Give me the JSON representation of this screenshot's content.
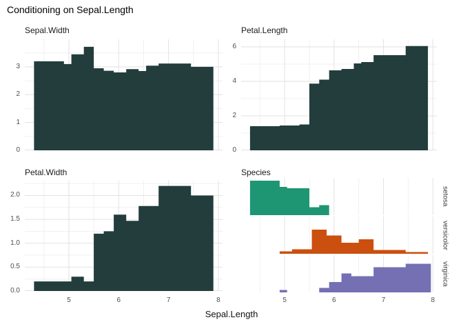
{
  "title": "Conditioning on Sepal.Length",
  "x_axis": {
    "label": "Sepal.Length",
    "tick_labels": [
      "5",
      "6",
      "7",
      "8"
    ],
    "tick_values": [
      5,
      6,
      7,
      8
    ],
    "minor_ticks": [
      4.5,
      5.5,
      6.5,
      7.5
    ],
    "range": [
      4.12,
      8.08
    ]
  },
  "colors": {
    "bar_dark": "#223d3c",
    "setosa": "#1f9673",
    "versicolor": "#cb4f0e",
    "virginica": "#7570b3",
    "grid_major": "#e2e2e2",
    "grid_minor": "#f0f0f0",
    "tick_text": "#4d4d4d",
    "strip_text": "#3f3f3f",
    "title_text": "#000000"
  },
  "chart_data": [
    {
      "type": "area",
      "name": "Sepal.Width",
      "ylim": [
        0,
        3.99
      ],
      "ytick_values": [
        0,
        1,
        2,
        3
      ],
      "ytick_labels": [
        "0",
        "1",
        "2",
        "3"
      ],
      "yminor": [
        0.5,
        1.5,
        2.5,
        3.5
      ],
      "color_key": "bar_dark",
      "segments": [
        [
          4.3,
          4.9,
          3.2
        ],
        [
          4.9,
          5.05,
          3.1
        ],
        [
          5.05,
          5.3,
          3.45
        ],
        [
          5.3,
          5.5,
          3.72
        ],
        [
          5.5,
          5.7,
          2.95
        ],
        [
          5.7,
          5.9,
          2.86
        ],
        [
          5.9,
          6.15,
          2.8
        ],
        [
          6.15,
          6.4,
          2.92
        ],
        [
          6.4,
          6.55,
          2.85
        ],
        [
          6.55,
          6.8,
          3.04
        ],
        [
          6.8,
          7.45,
          3.12
        ],
        [
          7.45,
          7.9,
          3.0
        ]
      ]
    },
    {
      "type": "area",
      "name": "Petal.Length",
      "ylim": [
        0,
        6.44
      ],
      "ytick_values": [
        0,
        2,
        4,
        6
      ],
      "ytick_labels": [
        "0",
        "2",
        "4",
        "6"
      ],
      "yminor": [
        1,
        3,
        5
      ],
      "color_key": "bar_dark",
      "segments": [
        [
          4.3,
          4.9,
          1.4
        ],
        [
          4.9,
          5.3,
          1.44
        ],
        [
          5.3,
          5.5,
          1.5
        ],
        [
          5.5,
          5.7,
          3.87
        ],
        [
          5.7,
          5.9,
          4.1
        ],
        [
          5.9,
          6.15,
          4.64
        ],
        [
          6.15,
          6.4,
          4.72
        ],
        [
          6.4,
          6.55,
          5.04
        ],
        [
          6.55,
          6.8,
          5.12
        ],
        [
          6.8,
          7.45,
          5.52
        ],
        [
          7.45,
          7.9,
          6.05
        ]
      ]
    },
    {
      "type": "area",
      "name": "Petal.Width",
      "ylim": [
        0,
        2.31
      ],
      "ytick_values": [
        0,
        0.5,
        1,
        1.5,
        2
      ],
      "ytick_labels": [
        "0.0",
        "0.5",
        "1.0",
        "1.5",
        "2.0"
      ],
      "yminor": [
        0.25,
        0.75,
        1.25,
        1.75,
        2.25
      ],
      "color_key": "bar_dark",
      "segments": [
        [
          4.3,
          5.05,
          0.2
        ],
        [
          5.05,
          5.3,
          0.3
        ],
        [
          5.3,
          5.5,
          0.2
        ],
        [
          5.5,
          5.7,
          1.2
        ],
        [
          5.7,
          5.9,
          1.25
        ],
        [
          5.9,
          6.15,
          1.6
        ],
        [
          6.15,
          6.4,
          1.47
        ],
        [
          6.4,
          6.8,
          1.78
        ],
        [
          6.8,
          7.45,
          2.2
        ],
        [
          7.45,
          7.9,
          2.0
        ]
      ]
    },
    {
      "type": "histogram-facets",
      "name": "Species",
      "ylim": [
        0,
        1.08
      ],
      "facets": [
        {
          "label": "setosa",
          "color_key": "setosa",
          "segments": [
            [
              4.3,
              4.9,
              1.0
            ],
            [
              4.9,
              5.05,
              0.82
            ],
            [
              5.05,
              5.5,
              0.78
            ],
            [
              5.5,
              5.7,
              0.23
            ],
            [
              5.7,
              5.9,
              0.29
            ]
          ]
        },
        {
          "label": "versicolor",
          "color_key": "versicolor",
          "segments": [
            [
              4.9,
              5.15,
              0.07
            ],
            [
              5.15,
              5.55,
              0.13
            ],
            [
              5.55,
              5.85,
              0.7
            ],
            [
              5.85,
              6.15,
              0.53
            ],
            [
              6.15,
              6.5,
              0.32
            ],
            [
              6.5,
              6.8,
              0.42
            ],
            [
              6.8,
              7.45,
              0.11
            ],
            [
              7.45,
              7.9,
              0.05
            ]
          ]
        },
        {
          "label": "virginica",
          "color_key": "virginica",
          "segments": [
            [
              4.9,
              5.05,
              0.07
            ],
            [
              5.7,
              5.9,
              0.13
            ],
            [
              5.9,
              6.15,
              0.3
            ],
            [
              6.15,
              6.35,
              0.55
            ],
            [
              6.35,
              6.8,
              0.47
            ],
            [
              6.8,
              7.45,
              0.73
            ],
            [
              7.45,
              7.96,
              0.83
            ]
          ]
        }
      ]
    }
  ]
}
